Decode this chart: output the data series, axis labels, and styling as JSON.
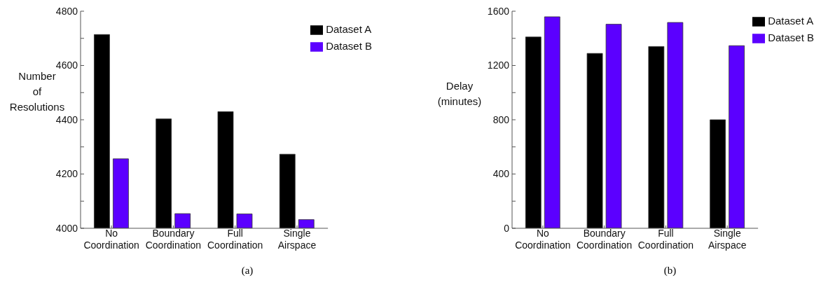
{
  "chart_data": [
    {
      "type": "bar",
      "ylabel": "Number of Resolutions",
      "categories": [
        "No Coordination",
        "Boundary Coordination",
        "Full Coordination",
        "Single Airspace"
      ],
      "series": [
        {
          "name": "Dataset A",
          "color": "#000000",
          "values": [
            4714,
            4403,
            4430,
            4273
          ]
        },
        {
          "name": "Dataset B",
          "color": "#5b00ff",
          "values": [
            4256,
            4054,
            4053,
            4032
          ]
        }
      ],
      "ylim": [
        4000,
        4800
      ],
      "yticks": [
        4000,
        {
          "value": 4100,
          "label": null
        },
        4200,
        {
          "value": 4300,
          "label": null
        },
        4400,
        {
          "value": 4500,
          "label": null
        },
        4600,
        {
          "value": 4700,
          "label": null
        },
        4800
      ],
      "grid": false,
      "legend": "top right",
      "annotations": [
        "(a)"
      ]
    },
    {
      "type": "bar",
      "ylabel": "Delay (minutes)",
      "categories": [
        "No Coordination",
        "Boundary Coordination",
        "Full Coordination",
        "Single Airspace"
      ],
      "series": [
        {
          "name": "Dataset A",
          "color": "#000000",
          "values": [
            1410,
            1289,
            1340,
            800
          ]
        },
        {
          "name": "Dataset B",
          "color": "#5b00ff",
          "values": [
            1559,
            1504,
            1517,
            1346
          ]
        }
      ],
      "ylim": [
        0,
        1600
      ],
      "yticks": [
        0,
        {
          "value": 200,
          "label": null
        },
        400,
        {
          "value": 600,
          "label": null
        },
        800,
        {
          "value": 1000,
          "label": null
        },
        1200,
        {
          "value": 1400,
          "label": null
        },
        1600
      ],
      "grid": false,
      "legend": "top right",
      "annotations": [
        "(b)"
      ]
    }
  ]
}
